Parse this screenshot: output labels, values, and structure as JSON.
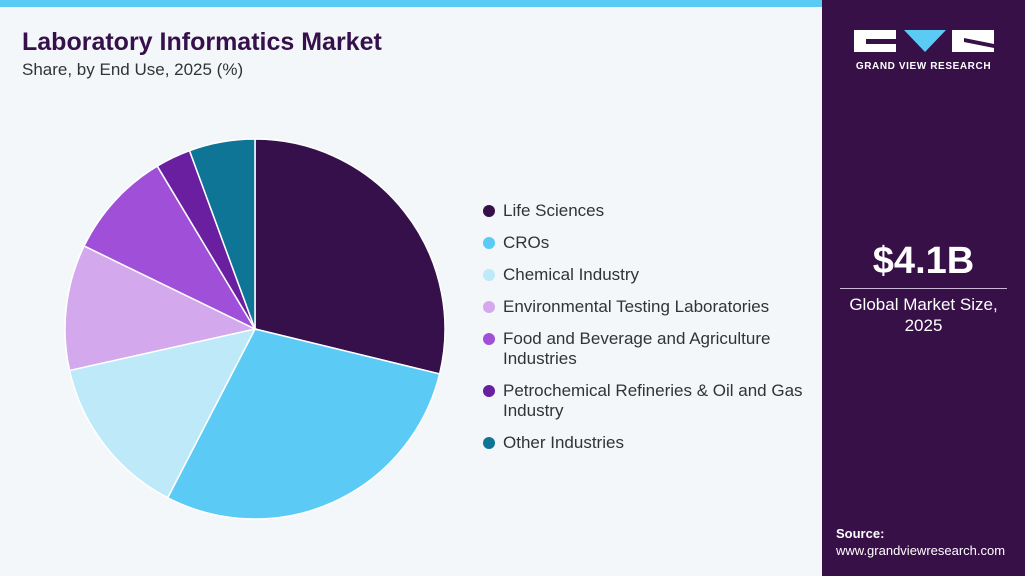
{
  "chart_data": {
    "type": "pie",
    "title": "Laboratory Informatics Market",
    "subtitle": "Share, by End Use, 2025 (%)",
    "categories": [
      "Life Sciences",
      "CROs",
      "Chemical Industry",
      "Environmental Testing Laboratories",
      "Food and Beverage and Agriculture Industries",
      "Petrochemical Refineries & Oil and Gas Industry",
      "Other Industries"
    ],
    "values": [
      28.8,
      28.8,
      13.9,
      10.7,
      9.2,
      3.0,
      5.6
    ],
    "colors": [
      "#36104a",
      "#5bcbf5",
      "#bde9f9",
      "#d4a8ec",
      "#a050d8",
      "#6a1fa0",
      "#0e7597"
    ],
    "legend": "right"
  },
  "panel": {
    "logo": "GRAND VIEW RESEARCH",
    "market_size": "$4.1B",
    "market_label": "Global Market Size, 2025",
    "source_label": "Source:",
    "source_url": "www.grandviewresearch.com"
  }
}
